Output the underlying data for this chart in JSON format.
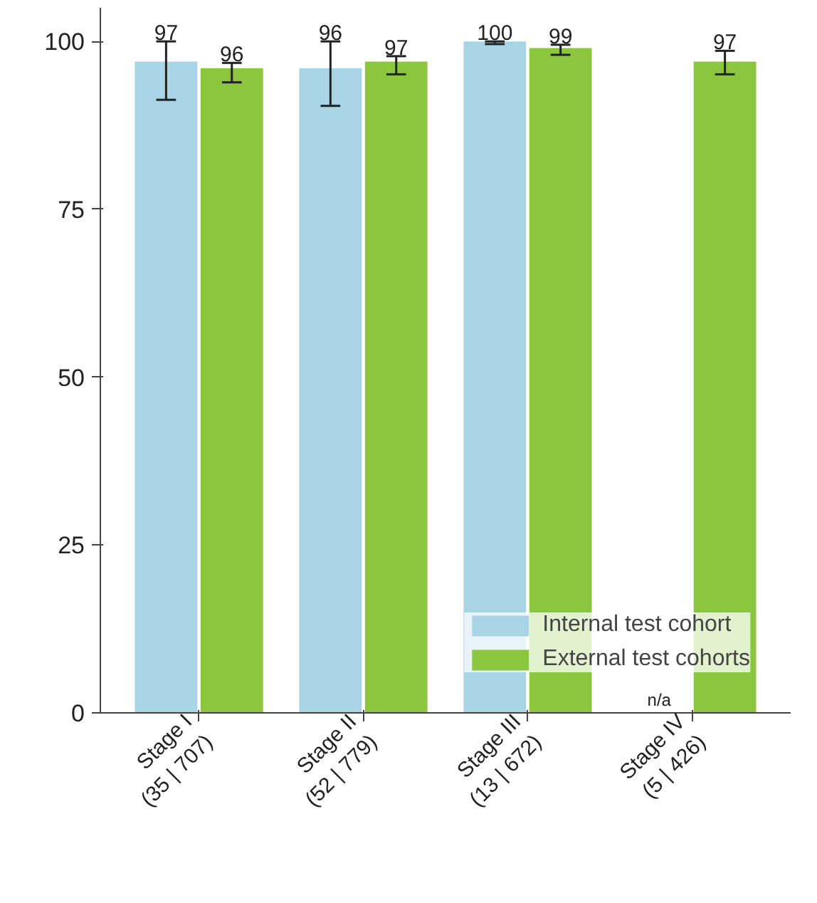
{
  "chart_data": {
    "type": "bar",
    "categories": [
      "Stage I\n(35 | 707)",
      "Stage II\n(52 | 779)",
      "Stage III\n(13 | 672)",
      "Stage IV\n(5 | 426)"
    ],
    "series": [
      {
        "name": "Internal test cohort",
        "color": "#a8d4e6",
        "values": [
          97,
          96,
          100,
          null
        ],
        "errors": [
          [
            91.3,
            100
          ],
          [
            90.4,
            100
          ],
          [
            99.6,
            100
          ],
          null
        ]
      },
      {
        "name": "External test cohorts",
        "color": "#8cc63f",
        "values": [
          96,
          97,
          99,
          97
        ],
        "errors": [
          [
            93.9,
            96.8
          ],
          [
            95.1,
            97.8
          ],
          [
            98.0,
            99.5
          ],
          [
            95.1,
            98.6
          ]
        ]
      }
    ],
    "ylim": [
      0,
      105
    ],
    "yticks": [
      0,
      25,
      50,
      75,
      100
    ],
    "grid": false,
    "legend": "bottom right",
    "data_labels": true,
    "annotations": [
      {
        "text": "n/a",
        "x": "Stage IV\n(5 | 426)",
        "y": 0
      }
    ]
  }
}
